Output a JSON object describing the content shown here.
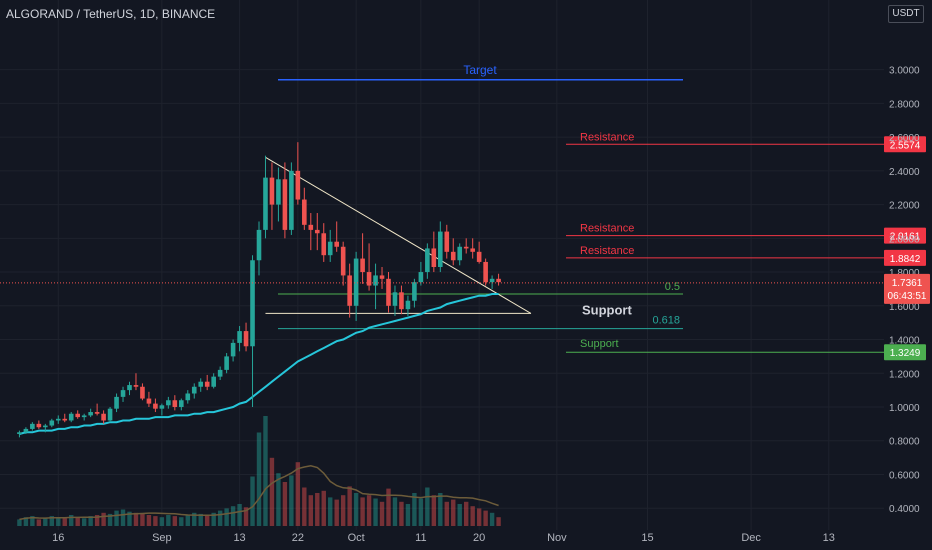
{
  "header": {
    "title": "ALGORAND / TetherUS, 1D, BINANCE",
    "currency": "USDT"
  },
  "chart_data": {
    "type": "candlestick",
    "ylim": [
      0.33,
      3.33
    ],
    "yticks": [
      "3.0000",
      "2.8000",
      "2.6000",
      "2.4000",
      "2.2000",
      "2.0000",
      "1.8000",
      "1.6000",
      "1.4000",
      "1.2000",
      "1.0000",
      "0.8000",
      "0.6000",
      "0.4000"
    ],
    "yticks_values": [
      3.0,
      2.8,
      2.6,
      2.4,
      2.2,
      2.0,
      1.8,
      1.6,
      1.4,
      1.2,
      1.0,
      0.8,
      0.6,
      0.4
    ],
    "xticks": [
      {
        "label": "16",
        "date": "2021-08-16"
      },
      {
        "label": "Sep",
        "date": "2021-09-01"
      },
      {
        "label": "13",
        "date": "2021-09-13"
      },
      {
        "label": "22",
        "date": "2021-09-22"
      },
      {
        "label": "Oct",
        "date": "2021-10-01"
      },
      {
        "label": "11",
        "date": "2021-10-11"
      },
      {
        "label": "20",
        "date": "2021-10-20"
      },
      {
        "label": "Nov",
        "date": "2021-11-01"
      },
      {
        "label": "15",
        "date": "2021-11-15"
      },
      {
        "label": "Dec",
        "date": "2021-12-01"
      },
      {
        "label": "13",
        "date": "2021-12-13"
      }
    ],
    "candles_start_date": "2021-08-10",
    "candles": [
      [
        0.84,
        0.86,
        0.82,
        0.85
      ],
      [
        0.85,
        0.88,
        0.84,
        0.87
      ],
      [
        0.87,
        0.91,
        0.86,
        0.9
      ],
      [
        0.9,
        0.92,
        0.87,
        0.88
      ],
      [
        0.88,
        0.9,
        0.85,
        0.89
      ],
      [
        0.89,
        0.93,
        0.88,
        0.92
      ],
      [
        0.92,
        0.95,
        0.9,
        0.93
      ],
      [
        0.93,
        0.96,
        0.91,
        0.92
      ],
      [
        0.92,
        0.97,
        0.91,
        0.96
      ],
      [
        0.96,
        0.98,
        0.93,
        0.94
      ],
      [
        0.94,
        0.96,
        0.92,
        0.95
      ],
      [
        0.95,
        0.99,
        0.94,
        0.97
      ],
      [
        0.97,
        1.02,
        0.95,
        0.96
      ],
      [
        0.96,
        0.98,
        0.9,
        0.92
      ],
      [
        0.92,
        1.0,
        0.91,
        0.99
      ],
      [
        0.99,
        1.08,
        0.97,
        1.06
      ],
      [
        1.06,
        1.12,
        1.03,
        1.1
      ],
      [
        1.1,
        1.15,
        1.07,
        1.13
      ],
      [
        1.13,
        1.2,
        1.1,
        1.12
      ],
      [
        1.12,
        1.14,
        1.04,
        1.05
      ],
      [
        1.05,
        1.09,
        1.0,
        1.02
      ],
      [
        1.02,
        1.05,
        0.97,
        0.99
      ],
      [
        0.99,
        1.02,
        0.95,
        1.01
      ],
      [
        1.01,
        1.06,
        0.99,
        1.04
      ],
      [
        1.04,
        1.07,
        0.98,
        1.0
      ],
      [
        1.0,
        1.05,
        0.98,
        1.04
      ],
      [
        1.04,
        1.1,
        1.02,
        1.08
      ],
      [
        1.08,
        1.14,
        1.05,
        1.12
      ],
      [
        1.12,
        1.17,
        1.09,
        1.15
      ],
      [
        1.15,
        1.19,
        1.1,
        1.12
      ],
      [
        1.12,
        1.2,
        1.11,
        1.18
      ],
      [
        1.18,
        1.24,
        1.16,
        1.22
      ],
      [
        1.22,
        1.32,
        1.2,
        1.3
      ],
      [
        1.3,
        1.4,
        1.27,
        1.38
      ],
      [
        1.38,
        1.48,
        1.33,
        1.45
      ],
      [
        1.45,
        1.5,
        1.33,
        1.36
      ],
      [
        1.36,
        1.9,
        1.0,
        1.87
      ],
      [
        1.87,
        2.1,
        1.78,
        2.05
      ],
      [
        2.05,
        2.49,
        2.0,
        2.36
      ],
      [
        2.36,
        2.45,
        2.05,
        2.2
      ],
      [
        2.2,
        2.42,
        2.1,
        2.35
      ],
      [
        2.35,
        2.45,
        2.0,
        2.05
      ],
      [
        2.05,
        2.45,
        2.02,
        2.4
      ],
      [
        2.4,
        2.57,
        2.2,
        2.23
      ],
      [
        2.23,
        2.3,
        2.05,
        2.08
      ],
      [
        2.08,
        2.15,
        1.93,
        2.05
      ],
      [
        2.05,
        2.15,
        1.93,
        2.03
      ],
      [
        2.03,
        2.09,
        1.86,
        1.9
      ],
      [
        1.9,
        2.05,
        1.86,
        1.98
      ],
      [
        1.98,
        2.1,
        1.92,
        1.95
      ],
      [
        1.95,
        1.98,
        1.72,
        1.78
      ],
      [
        1.78,
        1.85,
        1.53,
        1.6
      ],
      [
        1.6,
        1.92,
        1.51,
        1.88
      ],
      [
        1.88,
        2.03,
        1.73,
        1.8
      ],
      [
        1.8,
        1.97,
        1.69,
        1.72
      ],
      [
        1.72,
        1.85,
        1.58,
        1.78
      ],
      [
        1.78,
        1.83,
        1.7,
        1.76
      ],
      [
        1.76,
        1.8,
        1.56,
        1.6
      ],
      [
        1.6,
        1.72,
        1.54,
        1.68
      ],
      [
        1.68,
        1.72,
        1.55,
        1.58
      ],
      [
        1.58,
        1.66,
        1.54,
        1.63
      ],
      [
        1.63,
        1.76,
        1.59,
        1.74
      ],
      [
        1.74,
        1.86,
        1.72,
        1.8
      ],
      [
        1.8,
        1.97,
        1.76,
        1.94
      ],
      [
        1.94,
        2.04,
        1.8,
        1.83
      ],
      [
        1.83,
        2.1,
        1.8,
        2.04
      ],
      [
        2.04,
        2.08,
        1.88,
        1.92
      ],
      [
        1.92,
        2.0,
        1.84,
        1.87
      ],
      [
        1.87,
        1.97,
        1.84,
        1.95
      ],
      [
        1.95,
        2.0,
        1.91,
        1.94
      ],
      [
        1.94,
        2.0,
        1.88,
        1.92
      ],
      [
        1.92,
        1.98,
        1.85,
        1.86
      ],
      [
        1.86,
        1.88,
        1.72,
        1.74
      ],
      [
        1.74,
        1.78,
        1.7,
        1.76
      ],
      [
        1.76,
        1.79,
        1.72,
        1.74
      ]
    ],
    "volume_max": 1.0,
    "volumes": [
      0.06,
      0.08,
      0.09,
      0.06,
      0.07,
      0.09,
      0.08,
      0.07,
      0.1,
      0.08,
      0.07,
      0.09,
      0.1,
      0.12,
      0.11,
      0.14,
      0.15,
      0.13,
      0.12,
      0.11,
      0.1,
      0.09,
      0.08,
      0.1,
      0.09,
      0.08,
      0.1,
      0.12,
      0.11,
      0.1,
      0.12,
      0.14,
      0.16,
      0.18,
      0.2,
      0.17,
      0.45,
      0.85,
      1.0,
      0.62,
      0.48,
      0.4,
      0.46,
      0.58,
      0.35,
      0.28,
      0.3,
      0.32,
      0.26,
      0.24,
      0.28,
      0.36,
      0.3,
      0.26,
      0.28,
      0.25,
      0.22,
      0.34,
      0.26,
      0.22,
      0.2,
      0.3,
      0.25,
      0.35,
      0.28,
      0.3,
      0.22,
      0.24,
      0.2,
      0.22,
      0.18,
      0.16,
      0.14,
      0.12,
      0.08
    ],
    "ma_values": [
      0.84,
      0.85,
      0.85,
      0.86,
      0.86,
      0.86,
      0.87,
      0.87,
      0.88,
      0.88,
      0.89,
      0.89,
      0.9,
      0.9,
      0.91,
      0.91,
      0.92,
      0.92,
      0.93,
      0.93,
      0.93,
      0.94,
      0.94,
      0.94,
      0.95,
      0.95,
      0.95,
      0.96,
      0.96,
      0.97,
      0.97,
      0.98,
      0.99,
      1.0,
      1.02,
      1.03,
      1.06,
      1.09,
      1.12,
      1.15,
      1.18,
      1.21,
      1.24,
      1.27,
      1.29,
      1.31,
      1.33,
      1.35,
      1.37,
      1.39,
      1.4,
      1.42,
      1.44,
      1.45,
      1.47,
      1.48,
      1.49,
      1.5,
      1.51,
      1.52,
      1.53,
      1.54,
      1.55,
      1.57,
      1.58,
      1.59,
      1.61,
      1.62,
      1.63,
      1.64,
      1.65,
      1.66,
      1.66,
      1.67,
      1.67
    ],
    "levels": [
      {
        "label": "Target",
        "value": 2.94,
        "color": "#2962ff",
        "price_tag": ""
      },
      {
        "label": "Resistance",
        "value": 2.5574,
        "color": "#f23645",
        "price_tag": "2.5574"
      },
      {
        "label": "Resistance",
        "value": 2.0161,
        "color": "#f23645",
        "price_tag": "2.0161"
      },
      {
        "label": "Resistance",
        "value": 1.8842,
        "color": "#f23645",
        "price_tag": "1.8842"
      },
      {
        "label": "0.5",
        "value": 1.67,
        "color": "#4caf50",
        "price_tag": ""
      },
      {
        "label": "Support",
        "value": 1.555,
        "color": "#ffffff",
        "price_tag": ""
      },
      {
        "label": "0.618",
        "value": 1.465,
        "color": "#26a69a",
        "price_tag": ""
      },
      {
        "label": "Support",
        "value": 1.3249,
        "color": "#4caf50",
        "price_tag": "1.3249"
      }
    ],
    "triangle": {
      "top": [
        "2021-09-17",
        2.48
      ],
      "apex": [
        "2021-10-28",
        1.555
      ],
      "base_start": [
        "2021-09-17",
        1.555
      ]
    },
    "last_price": "1.7361",
    "countdown": "06:43:51",
    "colors": {
      "up": "#26a69a",
      "down": "#ef5350",
      "ma": "#26c6da",
      "vol_ma": "#6d5c3a",
      "background": "#131722",
      "grid": "#1e222d",
      "axis_text": "#b2b5be"
    }
  }
}
